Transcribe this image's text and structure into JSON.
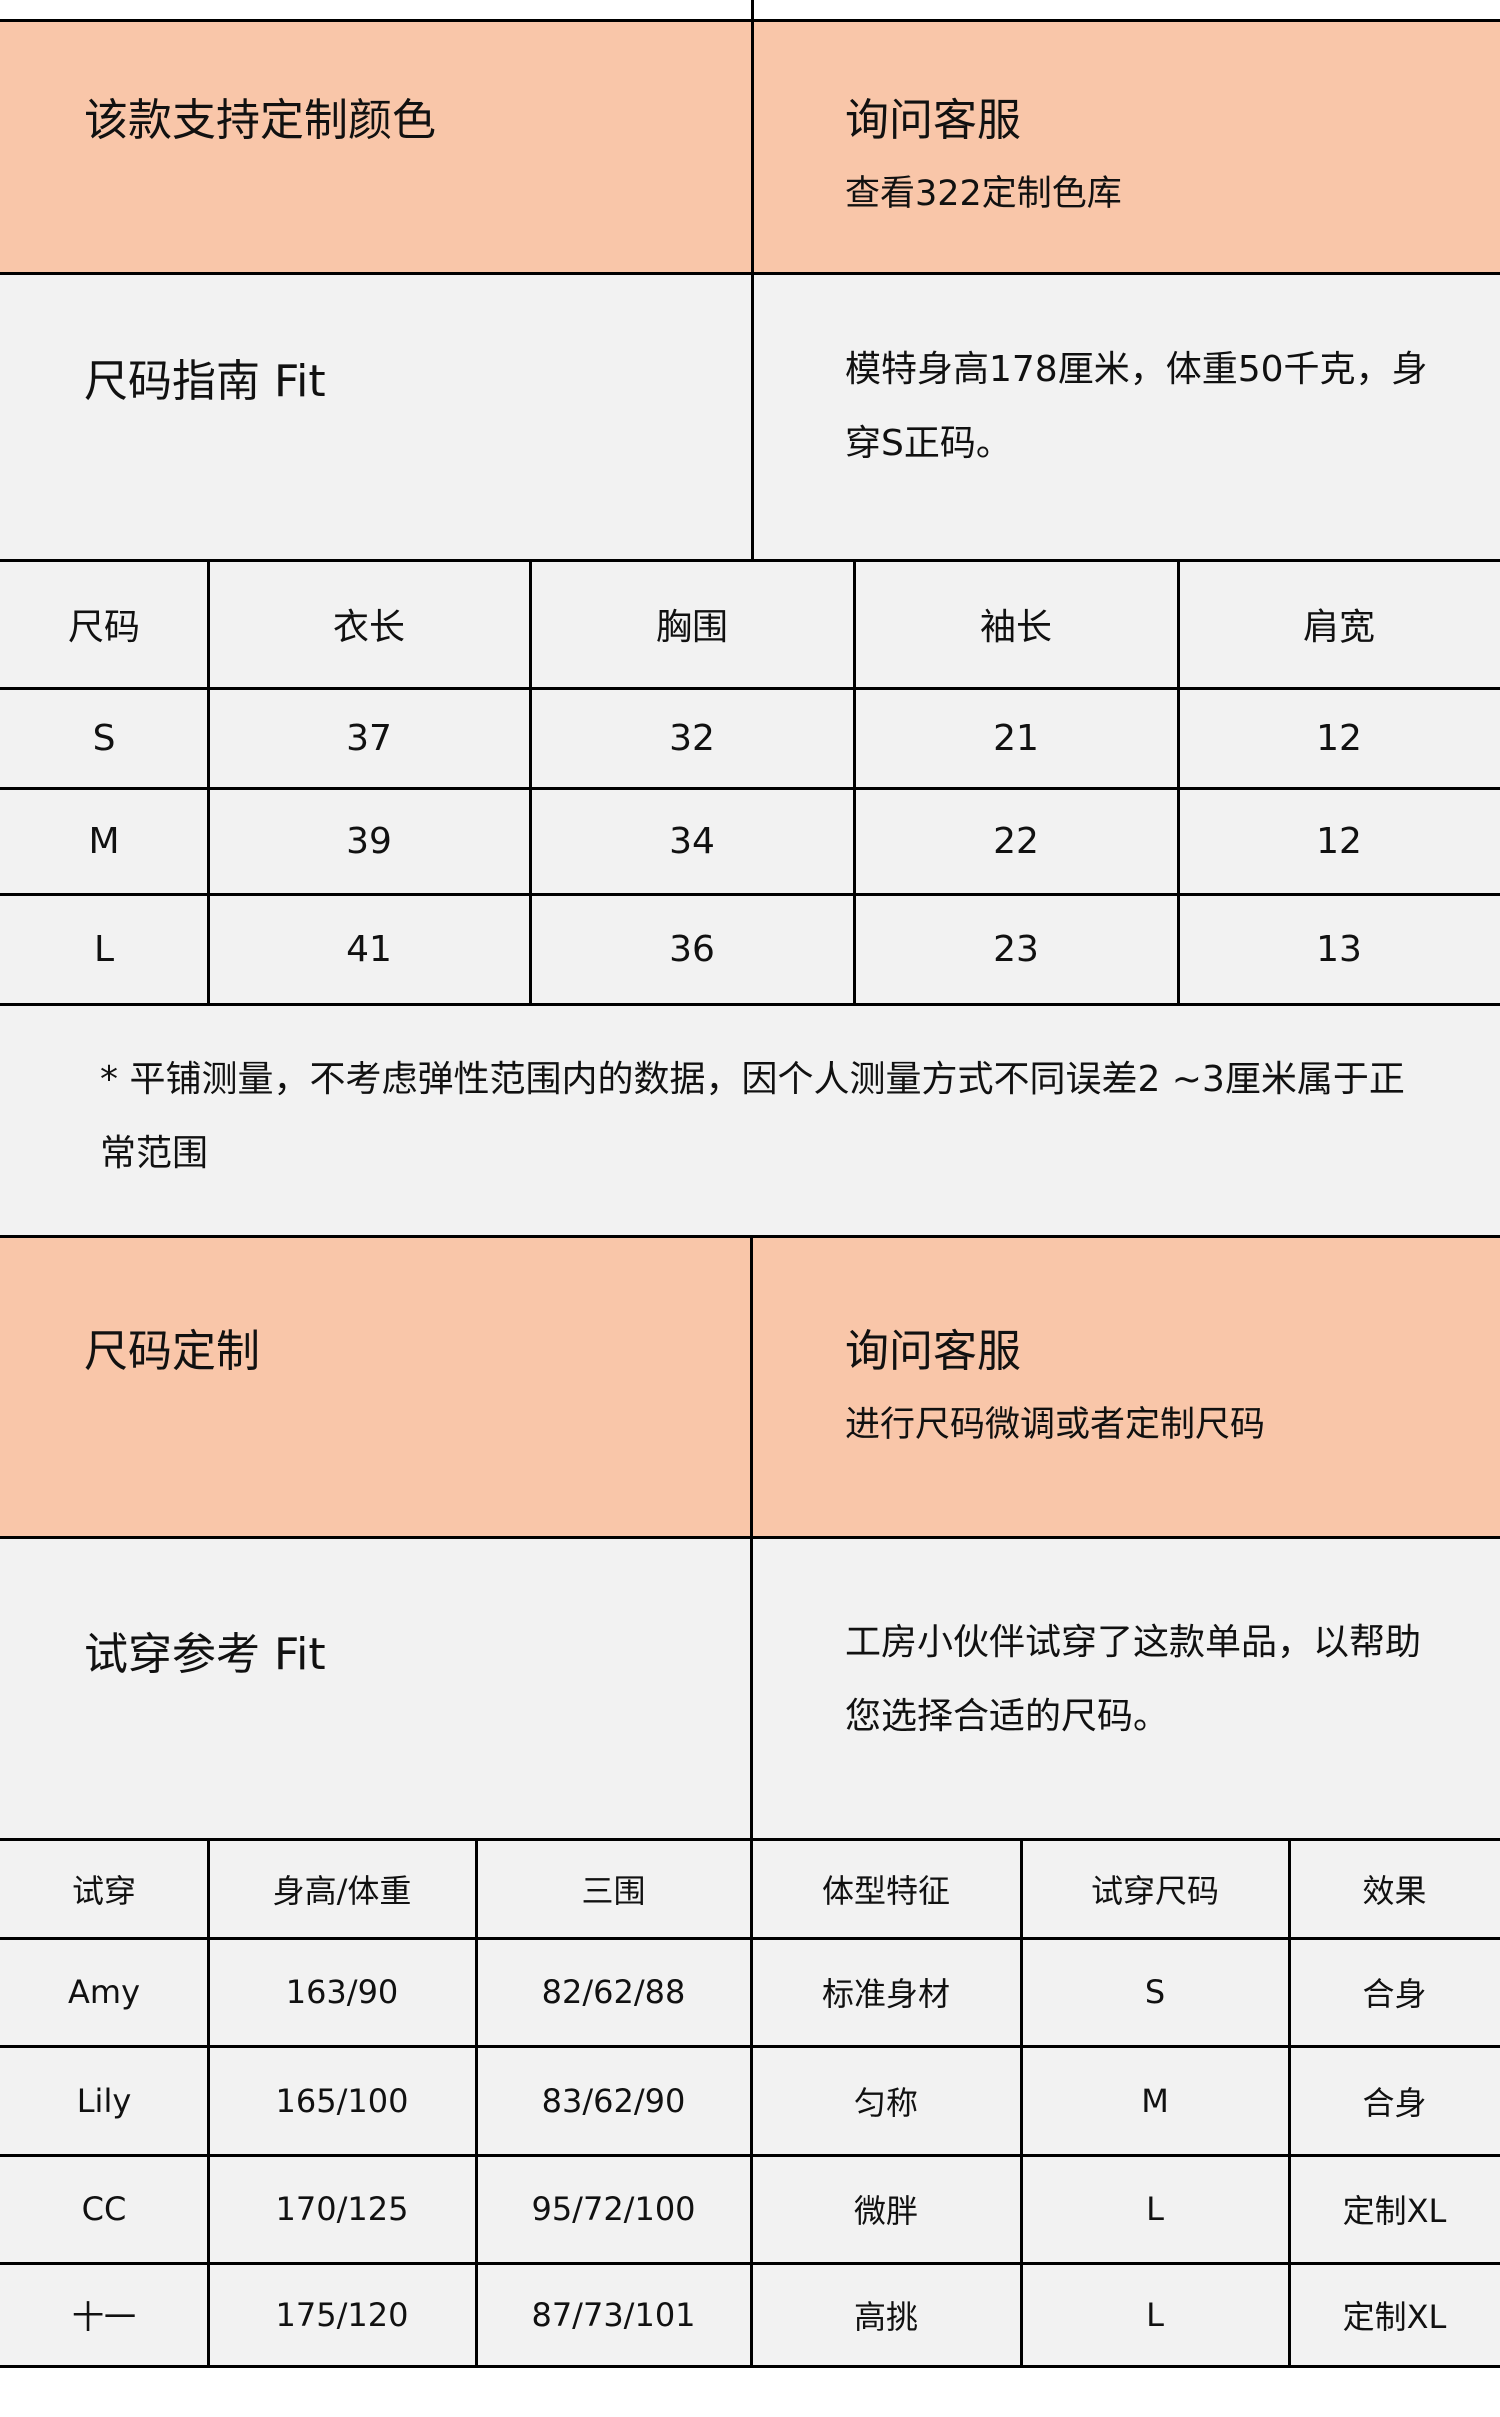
{
  "color_section": {
    "title": "该款支持定制颜色",
    "action": "询问客服",
    "action_sub": "查看322定制色库"
  },
  "size_guide": {
    "title": "尺码指南 Fit",
    "desc": "模特身高178厘米，体重50千克，身穿S正码。"
  },
  "size_table": {
    "headers": [
      "尺码",
      "衣长",
      "胸围",
      "袖长",
      "肩宽"
    ],
    "rows": [
      [
        "S",
        "37",
        "32",
        "21",
        "12"
      ],
      [
        "M",
        "39",
        "34",
        "22",
        "12"
      ],
      [
        "L",
        "41",
        "36",
        "23",
        "13"
      ]
    ]
  },
  "note": "* 平铺测量，不考虑弹性范围内的数据，因个人测量方式不同误差2 ~3厘米属于正常范围",
  "custom_section": {
    "title": "尺码定制",
    "action": "询问客服",
    "action_sub": "进行尺码微调或者定制尺码"
  },
  "try_on": {
    "title": "试穿参考 Fit",
    "desc": "工房小伙伴试穿了这款单品，以帮助您选择合适的尺码。"
  },
  "try_table": {
    "headers": [
      "试穿",
      "身高/体重",
      "三围",
      "体型特征",
      "试穿尺码",
      "效果"
    ],
    "rows": [
      [
        "Amy",
        "163/90",
        "82/62/88",
        "标准身材",
        "S",
        "合身"
      ],
      [
        "Lily",
        "165/100",
        "83/62/90",
        "匀称",
        "M",
        "合身"
      ],
      [
        "CC",
        "170/125",
        "95/72/100",
        "微胖",
        "L",
        "定制XL"
      ],
      [
        "十一",
        "175/120",
        "87/73/101",
        "高挑",
        "L",
        "定制XL"
      ]
    ]
  },
  "colors": {
    "peach": "#f9c6a9",
    "gray": "#f2f2f2"
  }
}
